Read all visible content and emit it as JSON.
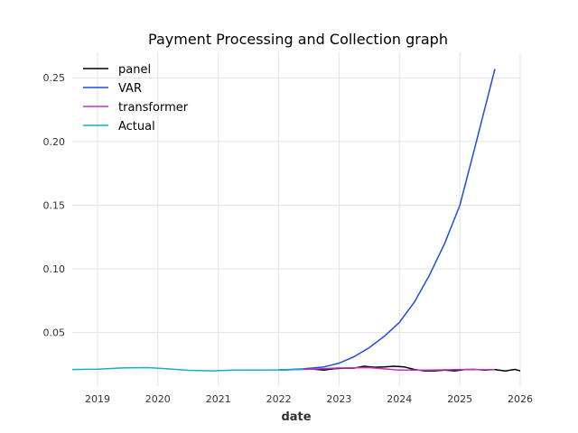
{
  "chart_data": {
    "type": "line",
    "title": "Payment Processing and Collection graph",
    "xlabel": "date",
    "ylabel": "",
    "x_ticks": [
      "2019",
      "2020",
      "2021",
      "2022",
      "2023",
      "2024",
      "2025",
      "2026"
    ],
    "y_ticks": [
      "0.05",
      "0.10",
      "0.15",
      "0.20",
      "0.25"
    ],
    "xlim": [
      "2018-08-01",
      "2026-01-01"
    ],
    "ylim": [
      0.008,
      0.27
    ],
    "grid": true,
    "legend_position": "top-left",
    "series": [
      {
        "name": "panel",
        "color": "#000000",
        "points": [
          [
            "2022-01-01",
            0.0207
          ],
          [
            "2022-04-01",
            0.0209
          ],
          [
            "2022-07-01",
            0.0216
          ],
          [
            "2022-10-01",
            0.0206
          ],
          [
            "2022-12-01",
            0.0216
          ],
          [
            "2023-02-01",
            0.0221
          ],
          [
            "2023-04-01",
            0.0221
          ],
          [
            "2023-06-01",
            0.0236
          ],
          [
            "2023-08-01",
            0.0228
          ],
          [
            "2023-10-01",
            0.023
          ],
          [
            "2023-12-01",
            0.0236
          ],
          [
            "2024-02-01",
            0.023
          ],
          [
            "2024-04-01",
            0.021
          ],
          [
            "2024-06-01",
            0.02
          ],
          [
            "2024-08-01",
            0.02
          ],
          [
            "2024-10-01",
            0.0205
          ],
          [
            "2024-12-01",
            0.02
          ],
          [
            "2025-02-01",
            0.021
          ],
          [
            "2025-04-01",
            0.0211
          ],
          [
            "2025-06-01",
            0.0205
          ],
          [
            "2025-08-01",
            0.021
          ],
          [
            "2025-10-01",
            0.0198
          ],
          [
            "2025-12-01",
            0.0211
          ],
          [
            "2026-01-01",
            0.02
          ]
        ]
      },
      {
        "name": "VAR",
        "color": "#1f4fd6",
        "points": [
          [
            "2022-01-01",
            0.0207
          ],
          [
            "2022-06-01",
            0.0215
          ],
          [
            "2022-10-01",
            0.023
          ],
          [
            "2023-01-01",
            0.026
          ],
          [
            "2023-04-01",
            0.031
          ],
          [
            "2023-07-01",
            0.038
          ],
          [
            "2023-10-01",
            0.047
          ],
          [
            "2024-01-01",
            0.058
          ],
          [
            "2024-04-01",
            0.074
          ],
          [
            "2024-07-01",
            0.095
          ],
          [
            "2024-10-01",
            0.12
          ],
          [
            "2025-01-01",
            0.15
          ],
          [
            "2025-04-01",
            0.195
          ],
          [
            "2025-08-01",
            0.257
          ]
        ]
      },
      {
        "name": "transformer",
        "color": "#c033c9",
        "points": [
          [
            "2022-01-01",
            0.0207
          ],
          [
            "2022-07-01",
            0.0212
          ],
          [
            "2023-01-01",
            0.0222
          ],
          [
            "2023-07-01",
            0.0225
          ],
          [
            "2024-01-01",
            0.0205
          ],
          [
            "2024-07-01",
            0.0205
          ],
          [
            "2025-01-01",
            0.021
          ],
          [
            "2025-08-01",
            0.0208
          ]
        ]
      },
      {
        "name": "Actual",
        "color": "#17aec6",
        "points": [
          [
            "2018-08-01",
            0.021
          ],
          [
            "2019-01-01",
            0.0213
          ],
          [
            "2019-06-01",
            0.0222
          ],
          [
            "2019-11-01",
            0.0225
          ],
          [
            "2020-03-01",
            0.0215
          ],
          [
            "2020-07-01",
            0.0204
          ],
          [
            "2020-12-01",
            0.02
          ],
          [
            "2021-04-01",
            0.0205
          ],
          [
            "2021-09-01",
            0.0206
          ],
          [
            "2022-01-01",
            0.0207
          ],
          [
            "2022-06-01",
            0.0212
          ]
        ]
      }
    ]
  }
}
